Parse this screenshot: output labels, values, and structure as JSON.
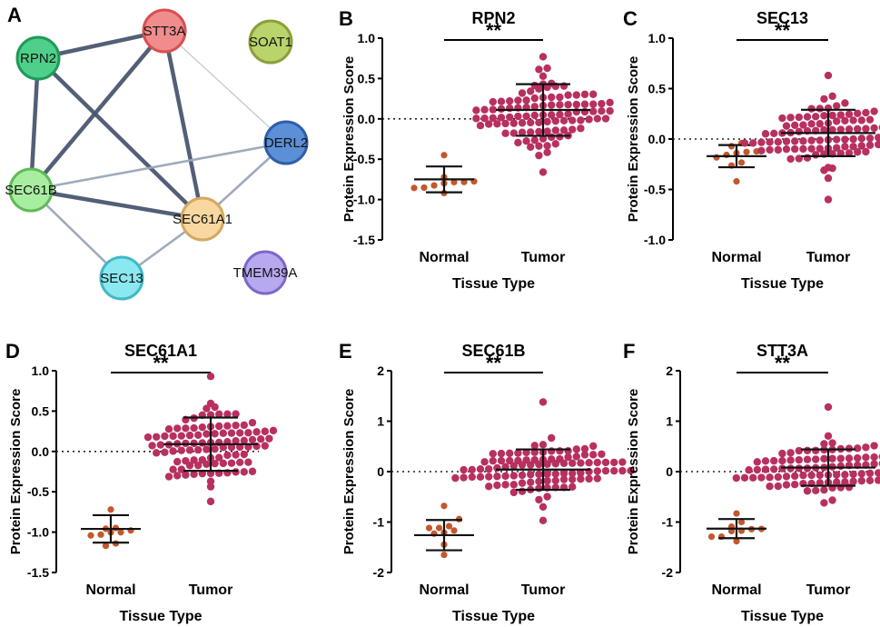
{
  "network": {
    "panel_label": "A",
    "nodes": [
      {
        "id": "STT3A",
        "label": "STT3A",
        "color": "#f08c8c",
        "stroke": "#d85050"
      },
      {
        "id": "RPN2",
        "label": "RPN2",
        "color": "#4fd08a",
        "stroke": "#1f9a58"
      },
      {
        "id": "SOAT1",
        "label": "SOAT1",
        "color": "#b8d46a",
        "stroke": "#8aa03a"
      },
      {
        "id": "DERL2",
        "label": "DERL2",
        "color": "#5b8fd6",
        "stroke": "#2f5fa8"
      },
      {
        "id": "SEC61B",
        "label": "SEC61B",
        "color": "#a8eea0",
        "stroke": "#5fba58"
      },
      {
        "id": "SEC61A1",
        "label": "SEC61A1",
        "color": "#f8d8a0",
        "stroke": "#d4a860"
      },
      {
        "id": "SEC13",
        "label": "SEC13",
        "color": "#8ae8f0",
        "stroke": "#40b8c4"
      },
      {
        "id": "TMEM39A",
        "label": "TMEM39A",
        "color": "#b8a8f0",
        "stroke": "#7e68c8"
      }
    ],
    "edges": [
      {
        "from": "RPN2",
        "to": "STT3A",
        "weight": "strong"
      },
      {
        "from": "RPN2",
        "to": "SEC61B",
        "weight": "strong"
      },
      {
        "from": "RPN2",
        "to": "SEC61A1",
        "weight": "strong"
      },
      {
        "from": "STT3A",
        "to": "SEC61B",
        "weight": "strong"
      },
      {
        "from": "STT3A",
        "to": "SEC61A1",
        "weight": "strong"
      },
      {
        "from": "STT3A",
        "to": "DERL2",
        "weight": "weak"
      },
      {
        "from": "SEC61B",
        "to": "SEC61A1",
        "weight": "strong"
      },
      {
        "from": "SEC61B",
        "to": "DERL2",
        "weight": "medium"
      },
      {
        "from": "SEC61B",
        "to": "SEC13",
        "weight": "medium"
      },
      {
        "from": "SEC61A1",
        "to": "DERL2",
        "weight": "medium"
      },
      {
        "from": "SEC61A1",
        "to": "SEC13",
        "weight": "medium"
      }
    ]
  },
  "colors": {
    "normal_dot": "#c2582c",
    "tumor_dot": "#b83060",
    "edge": "#4a5670",
    "error_bar": "#111111"
  },
  "chart_data": [
    {
      "panel_label": "B",
      "type": "scatter",
      "title": "RPN2",
      "xlabel": "Tissue Type",
      "ylabel": "Protein Expression Score",
      "categories": [
        "Normal",
        "Tumor"
      ],
      "ylim": [
        -1.5,
        1.0
      ],
      "yticks": [
        "1.0",
        "0.5",
        "0.0",
        "-0.5",
        "-1.0",
        "-1.5"
      ],
      "ytick_values": [
        1.0,
        0.5,
        0.0,
        -0.5,
        -1.0,
        -1.5
      ],
      "significance": "**",
      "groups": [
        {
          "name": "Normal",
          "mean": -0.75,
          "sd": 0.16,
          "n": 10,
          "min": -0.92,
          "max": -0.45
        },
        {
          "name": "Tumor",
          "mean": 0.11,
          "sd": 0.32,
          "n": 100,
          "min": -0.66,
          "max": 0.77
        }
      ]
    },
    {
      "panel_label": "C",
      "type": "scatter",
      "title": "SEC13",
      "xlabel": "Tissue Type",
      "ylabel": "Protein Expression Score",
      "categories": [
        "Normal",
        "Tumor"
      ],
      "ylim": [
        -1.0,
        1.0
      ],
      "yticks": [
        "1.0",
        "0.5",
        "0.0",
        "-0.5",
        "-1.0"
      ],
      "ytick_values": [
        1.0,
        0.5,
        0.0,
        -0.5,
        -1.0
      ],
      "significance": "**",
      "groups": [
        {
          "name": "Normal",
          "mean": -0.17,
          "sd": 0.11,
          "n": 10,
          "min": -0.42,
          "max": -0.04
        },
        {
          "name": "Tumor",
          "mean": 0.06,
          "sd": 0.23,
          "n": 100,
          "min": -0.6,
          "max": 0.63
        }
      ]
    },
    {
      "panel_label": "D",
      "type": "scatter",
      "title": "SEC61A1",
      "xlabel": "Tissue Type",
      "ylabel": "Protein Expression Score",
      "categories": [
        "Normal",
        "Tumor"
      ],
      "ylim": [
        -1.5,
        1.0
      ],
      "yticks": [
        "1.0",
        "0.5",
        "0.0",
        "-0.5",
        "-1.0",
        "-1.5"
      ],
      "ytick_values": [
        1.0,
        0.5,
        0.0,
        -0.5,
        -1.0,
        -1.5
      ],
      "significance": "**",
      "groups": [
        {
          "name": "Normal",
          "mean": -0.96,
          "sd": 0.17,
          "n": 10,
          "min": -1.17,
          "max": -0.72
        },
        {
          "name": "Tumor",
          "mean": 0.09,
          "sd": 0.33,
          "n": 100,
          "min": -0.62,
          "max": 0.93
        }
      ]
    },
    {
      "panel_label": "E",
      "type": "scatter",
      "title": "SEC61B",
      "xlabel": "Tissue Type",
      "ylabel": "Protein Expression Score",
      "categories": [
        "Normal",
        "Tumor"
      ],
      "ylim": [
        -2,
        2
      ],
      "yticks": [
        "2",
        "1",
        "0",
        "-1",
        "-2"
      ],
      "ytick_values": [
        2,
        1,
        0,
        -1,
        -2
      ],
      "significance": "**",
      "groups": [
        {
          "name": "Normal",
          "mean": -1.26,
          "sd": 0.3,
          "n": 10,
          "min": -1.65,
          "max": -0.68
        },
        {
          "name": "Tumor",
          "mean": 0.04,
          "sd": 0.4,
          "n": 100,
          "min": -0.97,
          "max": 1.38
        }
      ]
    },
    {
      "panel_label": "F",
      "type": "scatter",
      "title": "STT3A",
      "xlabel": "Tissue Type",
      "ylabel": "Protein Expression Score",
      "categories": [
        "Normal",
        "Tumor"
      ],
      "ylim": [
        -2,
        2
      ],
      "yticks": [
        "2",
        "1",
        "0",
        "-1",
        "-2"
      ],
      "ytick_values": [
        2,
        1,
        0,
        -1,
        -2
      ],
      "significance": "**",
      "groups": [
        {
          "name": "Normal",
          "mean": -1.13,
          "sd": 0.19,
          "n": 10,
          "min": -1.38,
          "max": -0.83
        },
        {
          "name": "Tumor",
          "mean": 0.08,
          "sd": 0.36,
          "n": 100,
          "min": -0.62,
          "max": 1.28
        }
      ]
    }
  ]
}
